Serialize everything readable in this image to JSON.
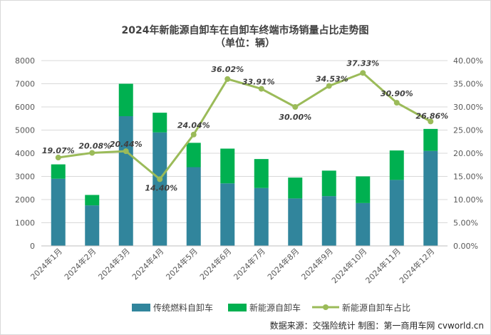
{
  "chart_data": {
    "type": "bar",
    "title": "2024年新能源自卸车在自卸车终端市场销量占比走势图",
    "subtitle": "（单位：辆）",
    "categories": [
      "2024年1月",
      "2024年2月",
      "2024年3月",
      "2024年4月",
      "2024年5月",
      "2024年6月",
      "2024年7月",
      "2024年8月",
      "2024年9月",
      "2024年10月",
      "2024年11月",
      "2024年12月"
    ],
    "series": [
      {
        "name": "传统燃料自卸车",
        "type": "stacked-bar",
        "color": "#31859c",
        "values": [
          2900,
          1750,
          5600,
          4900,
          3400,
          2700,
          2500,
          2050,
          2150,
          1850,
          2850,
          4100
        ]
      },
      {
        "name": "新能源自卸车",
        "type": "stacked-bar",
        "color": "#00b050",
        "values": [
          620,
          450,
          1400,
          850,
          1050,
          1500,
          1250,
          900,
          1100,
          1150,
          1270,
          950
        ]
      },
      {
        "name": "新能源自卸车占比",
        "type": "line",
        "axis": "right",
        "color": "#9bbb59",
        "values": [
          19.07,
          20.08,
          20.44,
          14.4,
          24.04,
          36.02,
          33.91,
          30.0,
          34.53,
          37.33,
          30.9,
          26.86
        ],
        "labels": [
          "19.07%",
          "20.08%",
          "20.44%",
          "14.40%",
          "24.04%",
          "36.02%",
          "33.91%",
          "30.00%",
          "34.53%",
          "37.33%",
          "30.90%",
          "26.86%"
        ]
      }
    ],
    "ylim": [
      0,
      8000
    ],
    "yticks": [
      "0",
      "1000",
      "2000",
      "3000",
      "4000",
      "5000",
      "6000",
      "7000",
      "8000"
    ],
    "y2lim": [
      0,
      40
    ],
    "y2ticks": [
      "0.00%",
      "5.00%",
      "10.00%",
      "15.00%",
      "20.00%",
      "25.00%",
      "30.00%",
      "35.00%",
      "40.00%"
    ],
    "legend_position": "bottom",
    "source_note": "数据来源：交强险统计  制图：第一商用车网 cvworld.cn"
  }
}
